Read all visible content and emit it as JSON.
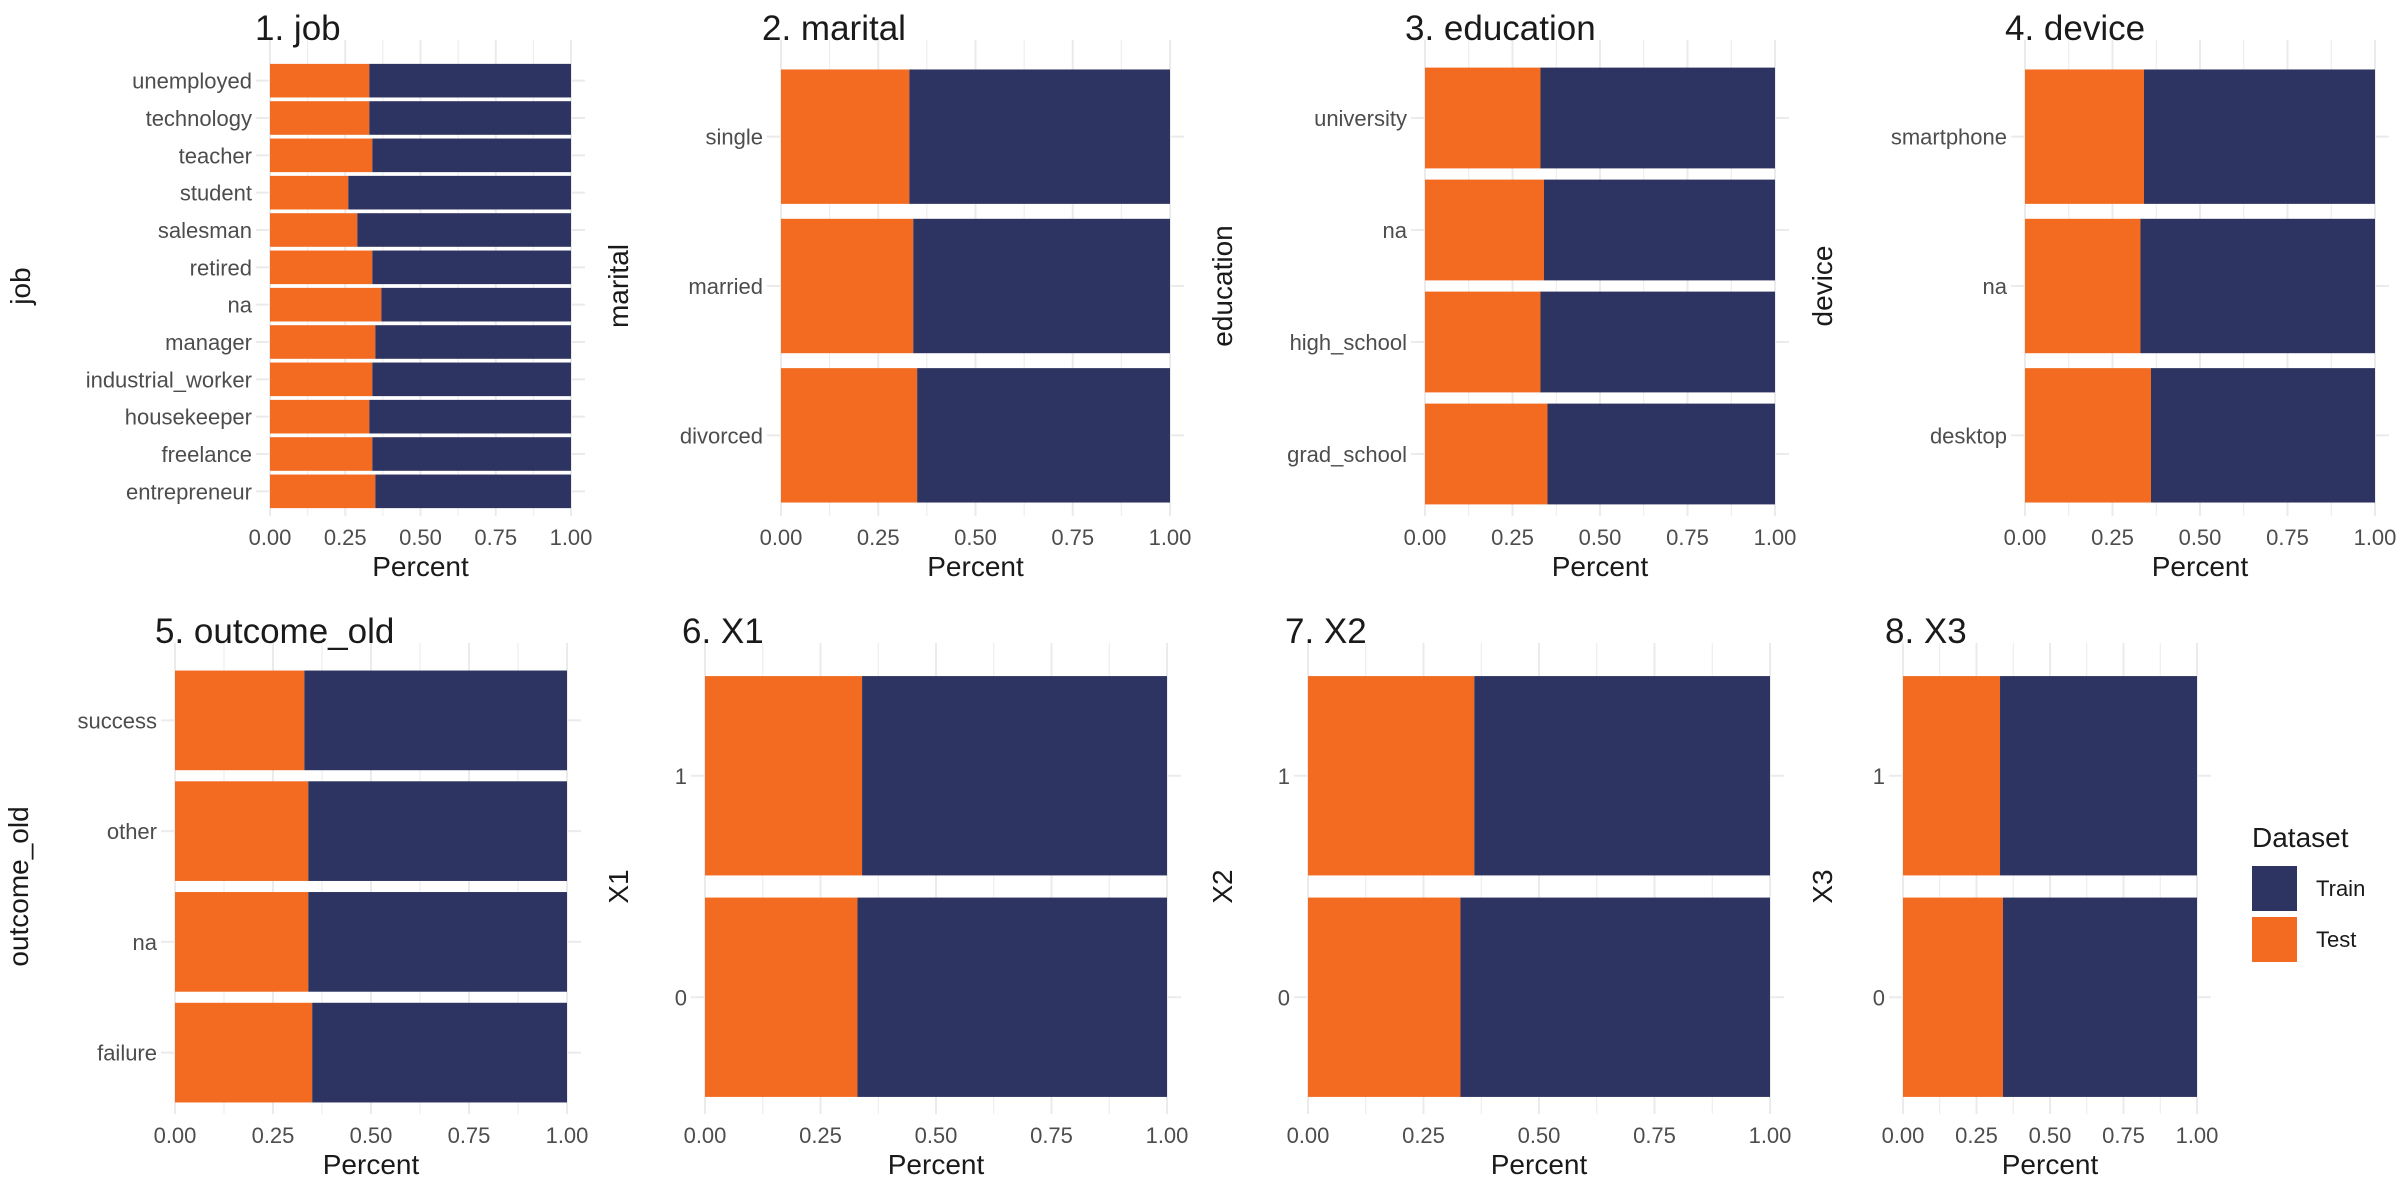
{
  "colors": {
    "train": "#2E3461",
    "test": "#F26B21",
    "grid": "#EBEBEB"
  },
  "legend": {
    "title": "Dataset",
    "items": [
      {
        "name": "Train",
        "color": "#2E3461"
      },
      {
        "name": "Test",
        "color": "#F26B21"
      }
    ]
  },
  "chart_data": [
    {
      "type": "bar",
      "orientation": "horizontal",
      "stacked": true,
      "title": "1. job",
      "xlabel": "Percent",
      "ylabel": "job",
      "xlim": [
        0,
        1
      ],
      "xticks": [
        "0.00",
        "0.25",
        "0.50",
        "0.75",
        "1.00"
      ],
      "categories": [
        "unemployed",
        "technology",
        "teacher",
        "student",
        "salesman",
        "retired",
        "na",
        "manager",
        "industrial_worker",
        "housekeeper",
        "freelance",
        "entrepreneur"
      ],
      "series": [
        {
          "name": "Test",
          "values": [
            0.33,
            0.33,
            0.34,
            0.26,
            0.29,
            0.34,
            0.37,
            0.35,
            0.34,
            0.33,
            0.34,
            0.35
          ]
        },
        {
          "name": "Train",
          "values": [
            0.67,
            0.67,
            0.66,
            0.74,
            0.71,
            0.66,
            0.63,
            0.65,
            0.66,
            0.67,
            0.66,
            0.65
          ]
        }
      ]
    },
    {
      "type": "bar",
      "orientation": "horizontal",
      "stacked": true,
      "title": "2. marital",
      "xlabel": "Percent",
      "ylabel": "marital",
      "xlim": [
        0,
        1
      ],
      "xticks": [
        "0.00",
        "0.25",
        "0.50",
        "0.75",
        "1.00"
      ],
      "categories": [
        "single",
        "married",
        "divorced"
      ],
      "series": [
        {
          "name": "Test",
          "values": [
            0.33,
            0.34,
            0.35
          ]
        },
        {
          "name": "Train",
          "values": [
            0.67,
            0.66,
            0.65
          ]
        }
      ]
    },
    {
      "type": "bar",
      "orientation": "horizontal",
      "stacked": true,
      "title": "3. education",
      "xlabel": "Percent",
      "ylabel": "education",
      "xlim": [
        0,
        1
      ],
      "xticks": [
        "0.00",
        "0.25",
        "0.50",
        "0.75",
        "1.00"
      ],
      "categories": [
        "university",
        "na",
        "high_school",
        "grad_school"
      ],
      "series": [
        {
          "name": "Test",
          "values": [
            0.33,
            0.34,
            0.33,
            0.35
          ]
        },
        {
          "name": "Train",
          "values": [
            0.67,
            0.66,
            0.67,
            0.65
          ]
        }
      ]
    },
    {
      "type": "bar",
      "orientation": "horizontal",
      "stacked": true,
      "title": "4. device",
      "xlabel": "Percent",
      "ylabel": "device",
      "xlim": [
        0,
        1
      ],
      "xticks": [
        "0.00",
        "0.25",
        "0.50",
        "0.75",
        "1.00"
      ],
      "categories": [
        "smartphone",
        "na",
        "desktop"
      ],
      "series": [
        {
          "name": "Test",
          "values": [
            0.34,
            0.33,
            0.36
          ]
        },
        {
          "name": "Train",
          "values": [
            0.66,
            0.67,
            0.64
          ]
        }
      ]
    },
    {
      "type": "bar",
      "orientation": "horizontal",
      "stacked": true,
      "title": "5. outcome_old",
      "xlabel": "Percent",
      "ylabel": "outcome_old",
      "xlim": [
        0,
        1
      ],
      "xticks": [
        "0.00",
        "0.25",
        "0.50",
        "0.75",
        "1.00"
      ],
      "categories": [
        "success",
        "other",
        "na",
        "failure"
      ],
      "series": [
        {
          "name": "Test",
          "values": [
            0.33,
            0.34,
            0.34,
            0.35
          ]
        },
        {
          "name": "Train",
          "values": [
            0.67,
            0.66,
            0.66,
            0.65
          ]
        }
      ]
    },
    {
      "type": "bar",
      "orientation": "horizontal",
      "stacked": true,
      "title": "6. X1",
      "xlabel": "Percent",
      "ylabel": "X1",
      "xlim": [
        0,
        1
      ],
      "xticks": [
        "0.00",
        "0.25",
        "0.50",
        "0.75",
        "1.00"
      ],
      "categories": [
        "1",
        "0"
      ],
      "series": [
        {
          "name": "Test",
          "values": [
            0.34,
            0.33
          ]
        },
        {
          "name": "Train",
          "values": [
            0.66,
            0.67
          ]
        }
      ]
    },
    {
      "type": "bar",
      "orientation": "horizontal",
      "stacked": true,
      "title": "7. X2",
      "xlabel": "Percent",
      "ylabel": "X2",
      "xlim": [
        0,
        1
      ],
      "xticks": [
        "0.00",
        "0.25",
        "0.50",
        "0.75",
        "1.00"
      ],
      "categories": [
        "1",
        "0"
      ],
      "series": [
        {
          "name": "Test",
          "values": [
            0.36,
            0.33
          ]
        },
        {
          "name": "Train",
          "values": [
            0.64,
            0.67
          ]
        }
      ]
    },
    {
      "type": "bar",
      "orientation": "horizontal",
      "stacked": true,
      "title": "8. X3",
      "xlabel": "Percent",
      "ylabel": "X3",
      "xlim": [
        0,
        1
      ],
      "xticks": [
        "0.00",
        "0.25",
        "0.50",
        "0.75",
        "1.00"
      ],
      "categories": [
        "1",
        "0"
      ],
      "series": [
        {
          "name": "Test",
          "values": [
            0.33,
            0.34
          ]
        },
        {
          "name": "Train",
          "values": [
            0.67,
            0.66
          ]
        }
      ]
    }
  ]
}
